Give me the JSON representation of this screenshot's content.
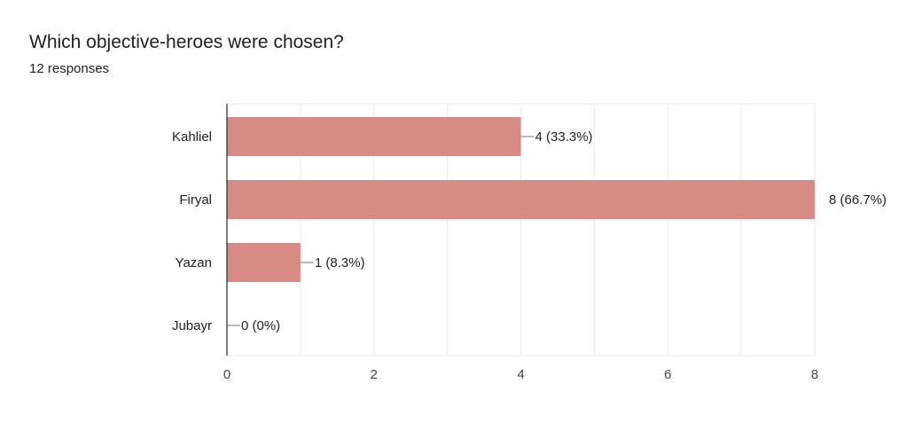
{
  "title": "Which objective-heroes were chosen?",
  "subtitle": "12 responses",
  "chart_data": {
    "type": "bar",
    "orientation": "horizontal",
    "categories": [
      "Kahliel",
      "Firyal",
      "Yazan",
      "Jubayr"
    ],
    "values": [
      4,
      8,
      1,
      0
    ],
    "data_labels": [
      "4 (33.3%)",
      "8 (66.7%)",
      "1 (8.3%)",
      "0 (0%)"
    ],
    "xlim": [
      0,
      8
    ],
    "xticks": [
      "0",
      "2",
      "4",
      "6",
      "8"
    ],
    "grid": true,
    "bar_color": "#d78b84"
  }
}
